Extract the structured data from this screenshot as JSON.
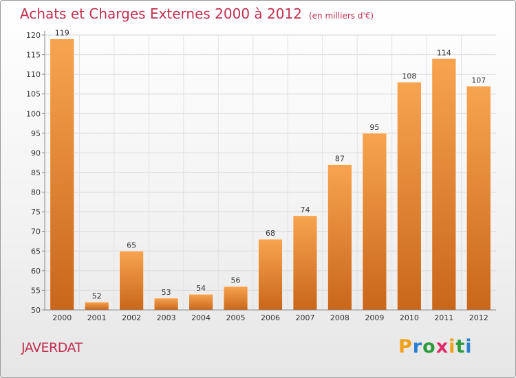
{
  "chart_data": {
    "type": "bar",
    "title": "Achats et Charges Externes 2000 à 2012",
    "subtitle": "(en milliers d'€)",
    "categories": [
      "2000",
      "2001",
      "2002",
      "2003",
      "2004",
      "2005",
      "2006",
      "2007",
      "2008",
      "2009",
      "2010",
      "2011",
      "2012"
    ],
    "values": [
      119,
      52,
      65,
      53,
      54,
      56,
      68,
      74,
      87,
      95,
      108,
      114,
      107
    ],
    "ylim": [
      50,
      120
    ],
    "yticks": [
      50,
      55,
      60,
      65,
      70,
      75,
      80,
      85,
      90,
      95,
      100,
      105,
      110,
      115,
      120
    ],
    "grid": true,
    "bar_color": "#f08a2a",
    "bar_color_dark": "#c9661a"
  },
  "footer": {
    "town": "JAVERDAT",
    "logo": "Proxiti",
    "logo_letters": [
      "P",
      "r",
      "o",
      "x",
      "i",
      "t",
      "i"
    ],
    "logo_colors": [
      "#f0a018",
      "#2a7fd0",
      "#2a9a3a",
      "#e02a6a",
      "#f0a018",
      "#2a9a3a",
      "#2a7fd0"
    ]
  }
}
